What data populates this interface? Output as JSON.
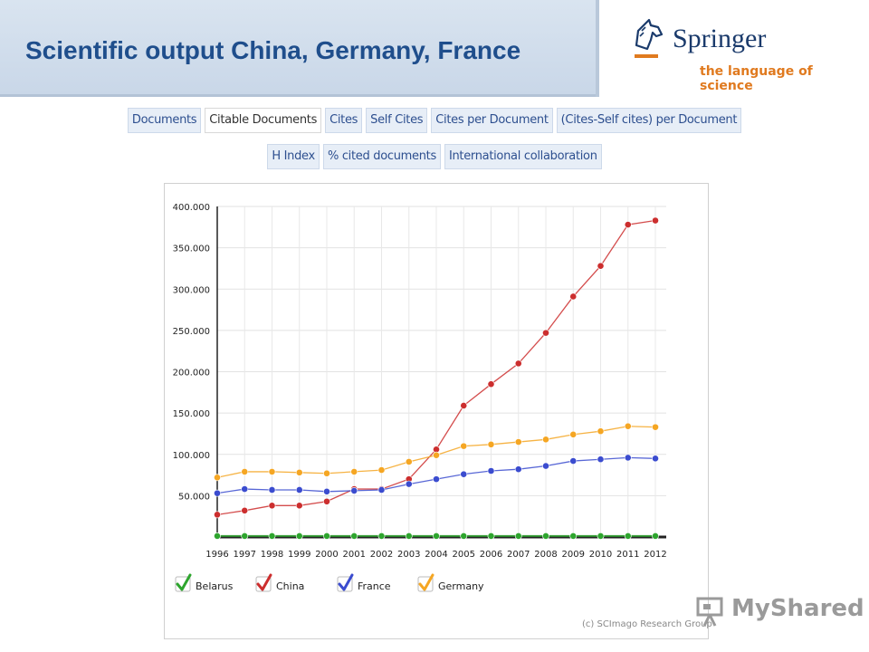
{
  "slide": {
    "title": "Scientific output China, Germany, France"
  },
  "logo": {
    "brand": "Springer",
    "tagline": "the language of science"
  },
  "tabs": {
    "row1": [
      "Documents",
      "Citable Documents",
      "Cites",
      "Self Cites",
      "Cites per Document",
      "(Cites-Self cites) per Document"
    ],
    "row2": [
      "H Index",
      "% cited documents",
      "International collaboration"
    ],
    "active": "Citable Documents"
  },
  "credit": "(c) SCImago Research Group",
  "watermark": {
    "text": "MyShared"
  },
  "colors": {
    "Belarus": "#2ea52e",
    "China": "#cc2e2e",
    "France": "#3b4ccf",
    "Germany": "#f5a623"
  },
  "chart_data": {
    "type": "line",
    "title": "",
    "xlabel": "",
    "ylabel": "",
    "x": [
      "1996",
      "1997",
      "1998",
      "1999",
      "2000",
      "2001",
      "2002",
      "2003",
      "2004",
      "2005",
      "2006",
      "2007",
      "2008",
      "2009",
      "2010",
      "2011",
      "2012"
    ],
    "ylim": [
      0,
      400000
    ],
    "yticks": [
      50000,
      100000,
      150000,
      200000,
      250000,
      300000,
      350000,
      400000
    ],
    "ytick_labels": [
      "50.000",
      "100.000",
      "150.000",
      "200.000",
      "250.000",
      "300.000",
      "350.000",
      "400.000"
    ],
    "grid": true,
    "legend": "bottom",
    "series": [
      {
        "name": "Belarus",
        "values": [
          1200,
          1200,
          1200,
          1200,
          1200,
          1200,
          1200,
          1200,
          1200,
          1200,
          1200,
          1200,
          1200,
          1200,
          1200,
          1200,
          1200
        ]
      },
      {
        "name": "China",
        "values": [
          27000,
          32000,
          38000,
          38000,
          43000,
          58000,
          58000,
          70000,
          106000,
          159000,
          185000,
          210000,
          247000,
          291000,
          328000,
          378000,
          383000
        ]
      },
      {
        "name": "France",
        "values": [
          53000,
          58000,
          57000,
          57000,
          55000,
          56000,
          57000,
          64000,
          70000,
          76000,
          80000,
          82000,
          86000,
          92000,
          94000,
          96000,
          95000
        ]
      },
      {
        "name": "Germany",
        "values": [
          72000,
          79000,
          79000,
          78000,
          77000,
          79000,
          81000,
          91000,
          99000,
          110000,
          112000,
          115000,
          118000,
          124000,
          128000,
          134000,
          133000
        ]
      }
    ]
  }
}
